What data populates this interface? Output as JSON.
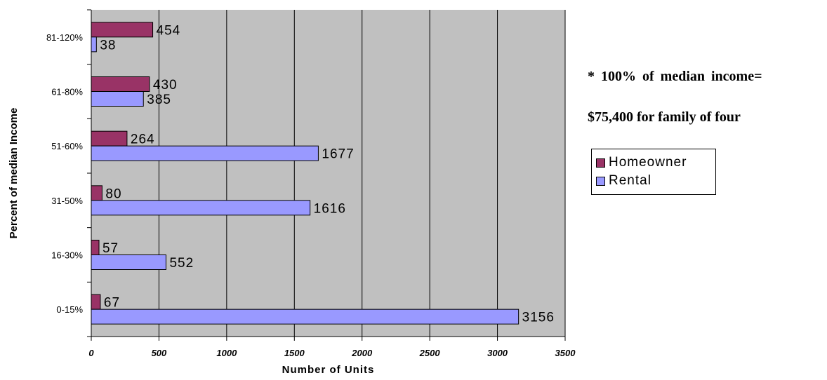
{
  "chart_data": {
    "type": "bar",
    "orientation": "horizontal",
    "categories": [
      "0-15%",
      "16-30%",
      "31-50%",
      "51-60%",
      "61-80%",
      "81-120%"
    ],
    "series": [
      {
        "name": "Homeowner",
        "color": "#993366",
        "values": [
          67,
          57,
          80,
          264,
          430,
          454
        ]
      },
      {
        "name": "Rental",
        "color": "#9999ff",
        "values": [
          3156,
          552,
          1616,
          1677,
          385,
          38
        ]
      }
    ],
    "xlabel": "Number of Units",
    "ylabel": "Percent of median Income",
    "xlim": [
      0,
      3500
    ],
    "xticks": [
      0,
      500,
      1000,
      1500,
      2000,
      2500,
      3000,
      3500
    ],
    "xtick_labels": [
      "0",
      "500",
      "1000",
      "1500",
      "2000",
      "2500",
      "3000",
      "3500"
    ],
    "grid": "vertical",
    "plot_background": "#c0c0c0",
    "legend_position": "right",
    "data_labels": true
  },
  "note": {
    "line1": "* 100% of median income=",
    "line2": "$75,400 for family of four"
  }
}
